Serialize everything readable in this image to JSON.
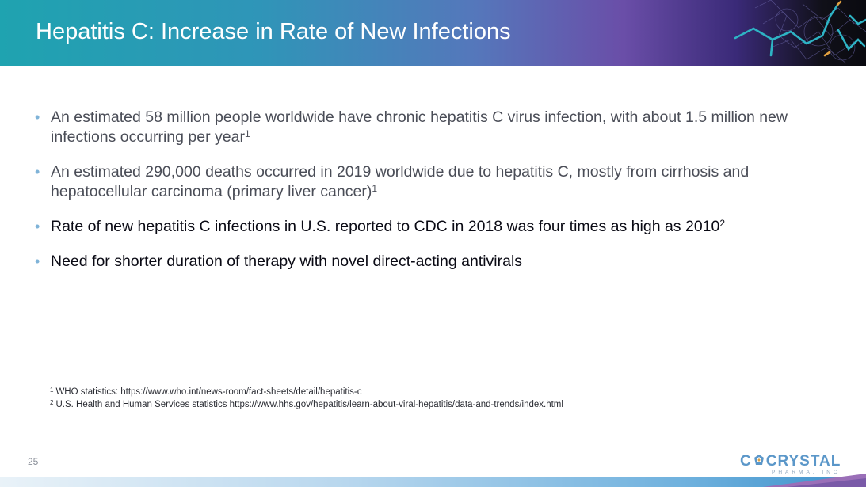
{
  "slide": {
    "title": "Hepatitis C: Increase in Rate of New Infections",
    "page_number": "25"
  },
  "bullets": [
    {
      "line1": "An estimated 58 million people worldwide have chronic hepatitis C virus infection, with about 1.5 million new",
      "line2": "infections occurring per year",
      "ref": "1"
    },
    {
      "line1": "An estimated 290,000 deaths occurred in 2019 worldwide due to hepatitis C, mostly from cirrhosis and",
      "line2": "hepatocellular carcinoma (primary liver cancer)",
      "ref": "1"
    },
    {
      "text": "Rate of new hepatitis C infections in U.S. reported to CDC in 2018 was four times as high as 2010",
      "ref": "2"
    },
    {
      "text": "Need for shorter duration of therapy with novel direct-acting antivirals"
    }
  ],
  "footnotes": [
    {
      "num": "1",
      "text": "WHO statistics: https://www.who.int/news-room/fact-sheets/detail/hepatitis-c"
    },
    {
      "num": "2",
      "text": "U.S. Health and Human Services statistics https://www.hhs.gov/hepatitis/learn-about-viral-hepatitis/data-and-trends/index.html"
    }
  ],
  "logo": {
    "prefix": "C",
    "suffix": "CRYSTAL",
    "subtitle": "PHARMA, INC."
  },
  "colors": {
    "bullet_dot": "#7fb3d8",
    "logo_blue": "#5b97c9"
  },
  "icons": {
    "bullet": "bullet-dot-icon",
    "logo_mark": "crystal-icon",
    "header_art": "molecule-art-icon"
  }
}
